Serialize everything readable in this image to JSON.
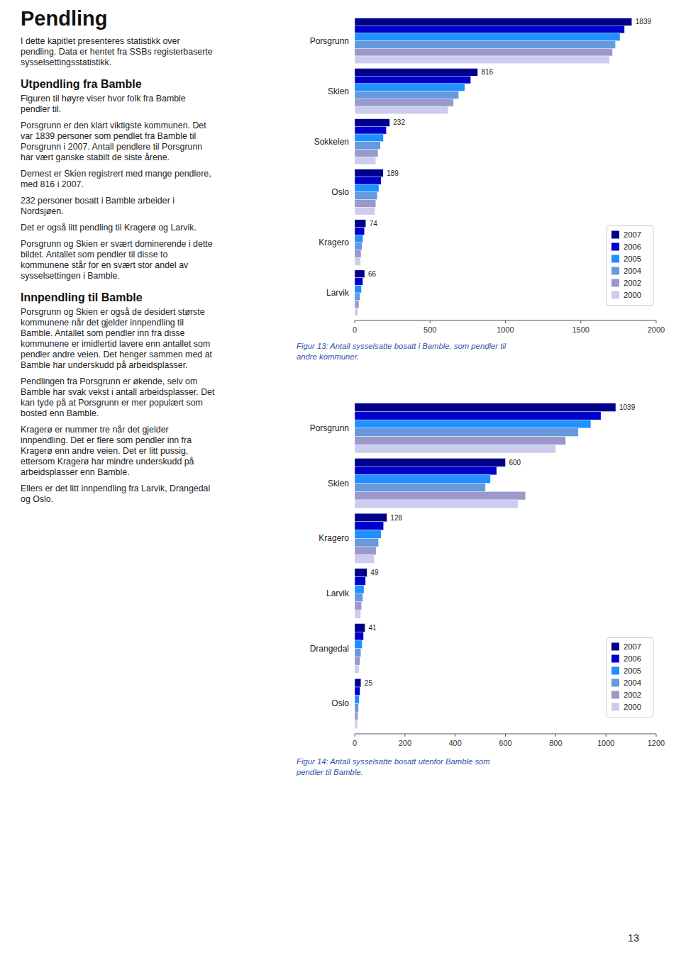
{
  "title": "Pendling",
  "text": [
    {
      "lines": [
        "I dette kapitlet presenteres statistikk over",
        "pendling. Data er hentet fra SSBs registerbaserte",
        "sysselsettingsstatistikk."
      ]
    },
    {
      "heading": "Utpendling fra Bamble"
    },
    {
      "lines": [
        "Figuren til høyre viser hvor folk fra Bamble",
        "pendler til."
      ]
    },
    {
      "lines": [
        "Porsgrunn er den klart viktigste kommunen. Det",
        "var 1839 personer som pendlet fra Bamble til",
        "Porsgrunn i 2007. Antall pendlere til Porsgrunn",
        "har vært ganske stabilt de siste årene."
      ]
    },
    {
      "lines": [
        "Dernest er Skien registrert med mange pendlere,",
        "med 816 i 2007."
      ]
    },
    {
      "lines": [
        "232 personer bosatt i Bamble arbeider i",
        "Nordsjøen."
      ]
    },
    {
      "lines": [
        "Det er også litt pendling til Kragerø og Larvik."
      ]
    },
    {
      "lines": [
        "Porsgrunn og Skien er svært dominerende i dette",
        "bildet. Antallet som pendler til disse to",
        "kommunene står for en svært stor andel av",
        "sysselsettingen i Bamble."
      ]
    },
    {
      "heading": "Innpendling til Bamble"
    },
    {
      "lines": [
        "Porsgrunn og Skien er også de desidert største",
        "kommunene når det gjelder innpendling til",
        "Bamble. Antallet som pendler inn fra disse",
        "kommunene er imidlertid lavere enn antallet som",
        "pendler andre veien. Det henger sammen med at",
        "Bamble har underskudd på arbeidsplasser."
      ]
    },
    {
      "lines": [
        "Pendlingen fra Porsgrunn er økende, selv om",
        "Bamble har svak vekst i antall arbeidsplasser. Det",
        "kan tyde på at Porsgrunn er mer populært som",
        "bosted enn Bamble."
      ]
    },
    {
      "lines": [
        "Kragerø er nummer tre når det gjelder",
        "innpendling. Det er flere som pendler inn fra",
        "Kragerø enn andre veien. Det er litt pussig,",
        "ettersom Kragerø har mindre underskudd på",
        "arbeidsplasser enn Bamble."
      ]
    },
    {
      "lines": [
        "Ellers er det litt innpendling fra Larvik, Drangedal",
        "og Oslo."
      ]
    }
  ],
  "page_number": 13,
  "chart_data": [
    {
      "type": "bar",
      "orientation": "horizontal",
      "caption": "Figur 13: Antall sysselsatte bosatt i Bamble, som pendler til\nandre kommuner.",
      "categories": [
        "Porsgrunn",
        "Skien",
        "Sokkelen",
        "Oslo",
        "Kragero",
        "Larvik"
      ],
      "series": [
        {
          "name": "2007",
          "color": "#00008B",
          "values": [
            1839,
            816,
            232,
            189,
            74,
            66
          ],
          "data_labels": true
        },
        {
          "name": "2006",
          "color": "#0000CD",
          "values": [
            1790,
            770,
            210,
            175,
            65,
            54
          ]
        },
        {
          "name": "2005",
          "color": "#1E90FF",
          "values": [
            1760,
            730,
            190,
            160,
            55,
            44
          ]
        },
        {
          "name": "2004",
          "color": "#6699DD",
          "values": [
            1730,
            690,
            170,
            150,
            48,
            36
          ]
        },
        {
          "name": "2002",
          "color": "#9999CC",
          "values": [
            1710,
            655,
            155,
            140,
            42,
            28
          ]
        },
        {
          "name": "2000",
          "color": "#CCCCEE",
          "values": [
            1690,
            620,
            140,
            135,
            38,
            22
          ]
        }
      ],
      "xlim": [
        0,
        2000
      ],
      "xticks": [
        0,
        500,
        1000,
        1500,
        2000
      ],
      "grid": false,
      "legend": "lower right"
    },
    {
      "type": "bar",
      "orientation": "horizontal",
      "caption": "Figur 14: Antall sysselsatte bosatt utenfor Bamble som\npendler til Bamble.",
      "categories": [
        "Porsgrunn",
        "Skien",
        "Kragero",
        "Larvik",
        "Drangedal",
        "Oslo"
      ],
      "series": [
        {
          "name": "2007",
          "color": "#00008B",
          "values": [
            1039,
            600,
            128,
            49,
            41,
            25
          ],
          "data_labels": true
        },
        {
          "name": "2006",
          "color": "#0000CD",
          "values": [
            980,
            565,
            115,
            43,
            35,
            21
          ]
        },
        {
          "name": "2005",
          "color": "#1E90FF",
          "values": [
            940,
            540,
            105,
            37,
            30,
            18
          ]
        },
        {
          "name": "2004",
          "color": "#6699DD",
          "values": [
            890,
            520,
            95,
            32,
            25,
            15
          ]
        },
        {
          "name": "2002",
          "color": "#9999CC",
          "values": [
            840,
            680,
            85,
            27,
            21,
            13
          ]
        },
        {
          "name": "2000",
          "color": "#CCCCEE",
          "values": [
            800,
            650,
            78,
            24,
            17,
            11
          ]
        }
      ],
      "xlim": [
        0,
        1200
      ],
      "xticks": [
        0,
        200,
        400,
        600,
        800,
        1000,
        1200
      ],
      "grid": false,
      "legend": "lower right"
    }
  ]
}
